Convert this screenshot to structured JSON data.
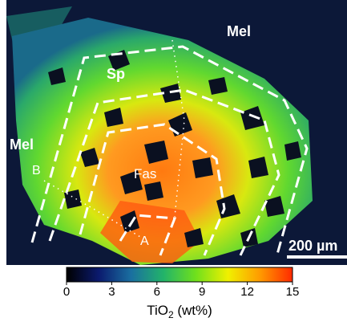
{
  "labels": {
    "mel_top": "Mel",
    "sp": "Sp",
    "mel_left": "Mel",
    "b": "B",
    "fas": "Fas",
    "a": "A"
  },
  "scale_bar": "200 µm",
  "colorbar": {
    "title": "TiO",
    "title_sub": "2",
    "title_unit": " (wt%)",
    "range": [
      0,
      15
    ],
    "ticks": [
      0,
      3,
      6,
      9,
      12,
      15
    ],
    "colors": [
      "#000000",
      "#0b1a6e",
      "#1a6fa0",
      "#22b36a",
      "#6fe01c",
      "#f0f000",
      "#ff9a00",
      "#ff2a00"
    ]
  }
}
